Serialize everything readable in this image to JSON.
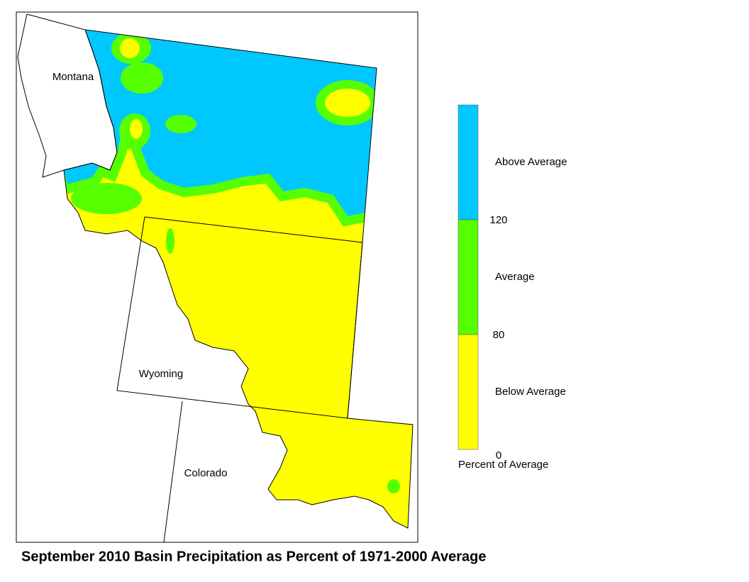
{
  "title": "September 2010 Basin Precipitation as Percent of 1971-2000 Average",
  "map": {
    "labels": [
      "Montana",
      "Wyoming",
      "Colorado"
    ]
  },
  "legend": {
    "classes": [
      {
        "label": "Above Average",
        "color": "#00c8ff"
      },
      {
        "label": "Average",
        "color": "#55ff00"
      },
      {
        "label": "Below Average",
        "color": "#ffff00"
      }
    ],
    "breaks": [
      120,
      80,
      0
    ],
    "caption": "Percent of Average"
  }
}
